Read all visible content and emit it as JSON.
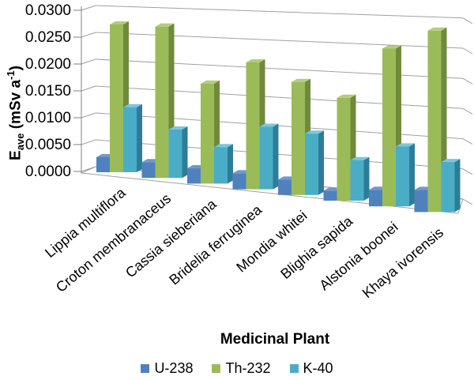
{
  "figure": {
    "background": "#ffffff"
  },
  "colors": {
    "grid": "#a0a0a0",
    "axis": "#808080",
    "text": "#000000",
    "u238": "#4f81bd",
    "th232": "#9bbb59",
    "k40": "#4bacc6"
  },
  "chart_data": {
    "type": "bar",
    "projection": "3d-clustered-column",
    "title": "",
    "xlabel": "Medicinal Plant",
    "ylabel": "Eave (mSv a-1)",
    "ylabel_parts": {
      "main": "E",
      "sub": "ave",
      "mid": " (mSv a",
      "sup": "-1",
      "end": ")"
    },
    "ylim": [
      0,
      0.03
    ],
    "y_tick_labels": [
      "0.0000",
      "0.0050",
      "0.0100",
      "0.0150",
      "0.0200",
      "0.0250",
      "0.0300"
    ],
    "y_tick_values": [
      0,
      0.005,
      0.01,
      0.015,
      0.02,
      0.025,
      0.03
    ],
    "grid": true,
    "legend_position": "bottom",
    "categories": [
      "Lippia multiflora",
      "Croton membranaceus",
      "Cassia sieberiana",
      "Bridelia ferruginea",
      "Mondia whitei",
      "Blighia sapida",
      "Alstonia boonei",
      "Khaya ivorensis"
    ],
    "series": [
      {
        "name": "U-238",
        "color": "#4f81bd",
        "side_color": "#2f5382",
        "top_color": "#7398c7",
        "values": [
          0.0028,
          0.0028,
          0.0026,
          0.0026,
          0.0024,
          0.0015,
          0.0024,
          0.0031
        ]
      },
      {
        "name": "Th-232",
        "color": "#9bbb59",
        "side_color": "#6f8a3b",
        "top_color": "#b5cb80",
        "values": [
          0.0275,
          0.0269,
          0.017,
          0.0207,
          0.0177,
          0.0155,
          0.0229,
          0.0254
        ]
      },
      {
        "name": "K-40",
        "color": "#4bacc6",
        "side_color": "#2c7d98",
        "top_color": "#7dc6db",
        "values": [
          0.0121,
          0.0086,
          0.0062,
          0.0102,
          0.0096,
          0.0061,
          0.0087,
          0.007
        ]
      }
    ]
  }
}
